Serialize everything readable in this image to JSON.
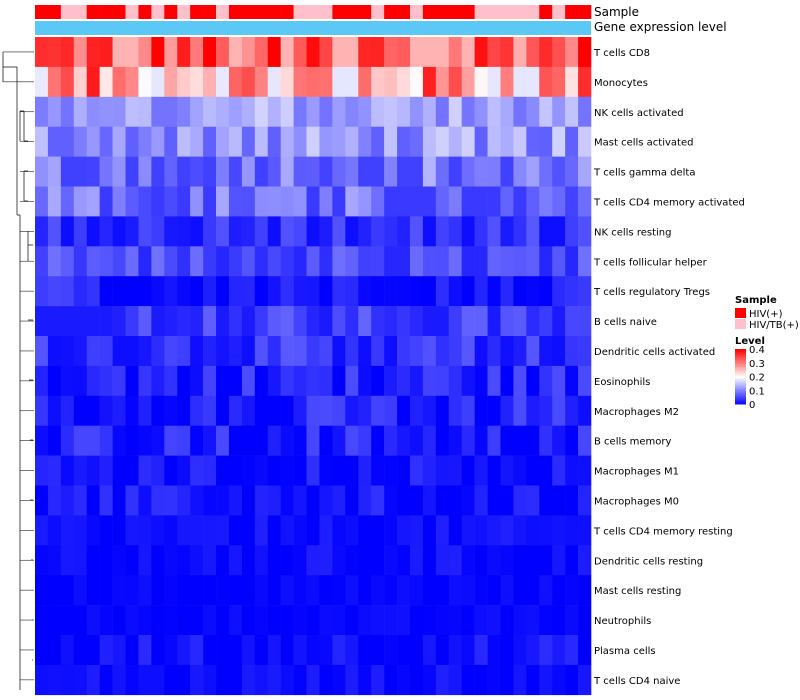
{
  "chart_data": {
    "type": "heatmap",
    "annotation_labels": [
      "Sample",
      "Gene expression level"
    ],
    "rows": [
      "T cells CD8",
      "Monocytes",
      "NK cells activated",
      "Mast cells activated",
      "T cells gamma delta",
      "T cells CD4 memory activated",
      "NK cells resting",
      "T cells follicular helper",
      "T cells regulatory  Tregs",
      "B cells naive",
      "Dendritic cells activated",
      "Eosinophils",
      "Macrophages M2",
      "B cells memory",
      "Macrophages M1",
      "Macrophages M0",
      "T cells CD4 memory resting",
      "Dendritic cells resting",
      "Mast cells resting",
      "Neutrophils",
      "Plasma cells",
      "T cells CD4 naive"
    ],
    "n_samples": 43,
    "row_means": [
      0.34,
      0.28,
      0.13,
      0.12,
      0.1,
      0.09,
      0.04,
      0.06,
      0.03,
      0.05,
      0.04,
      0.03,
      0.03,
      0.03,
      0.02,
      0.02,
      0.01,
      0.01,
      0.005,
      0.005,
      0.015,
      0.01
    ],
    "row_spread": [
      0.08,
      0.1,
      0.04,
      0.045,
      0.05,
      0.045,
      0.03,
      0.03,
      0.03,
      0.03,
      0.03,
      0.035,
      0.03,
      0.03,
      0.02,
      0.02,
      0.015,
      0.015,
      0.008,
      0.008,
      0.02,
      0.015
    ],
    "sample_groups": [
      1,
      1,
      0,
      0,
      1,
      1,
      1,
      0,
      1,
      0,
      1,
      0,
      1,
      1,
      0,
      1,
      1,
      1,
      1,
      1,
      0,
      0,
      0,
      1,
      1,
      1,
      0,
      1,
      1,
      0,
      1,
      1,
      1,
      1,
      0,
      0,
      0,
      0,
      0,
      1,
      0,
      1,
      1
    ],
    "sample_legend": {
      "title": "Sample",
      "entries": [
        {
          "label": "HIV(+)",
          "color": "#ff0000"
        },
        {
          "label": "HIV/TB(+)",
          "color": "#ffc0cb"
        }
      ]
    },
    "level_legend": {
      "title": "Level",
      "ticks": [
        0,
        0.1,
        0.2,
        0.3,
        0.4
      ],
      "tick_labels": [
        "0",
        "0.1",
        "0.2",
        "0.3",
        "0.4"
      ]
    },
    "expression_color": "#5bc8f5",
    "colors": {
      "low": "#0000ff",
      "mid": "#ffffff",
      "high": "#ff0000"
    },
    "range": [
      0,
      0.4
    ]
  }
}
